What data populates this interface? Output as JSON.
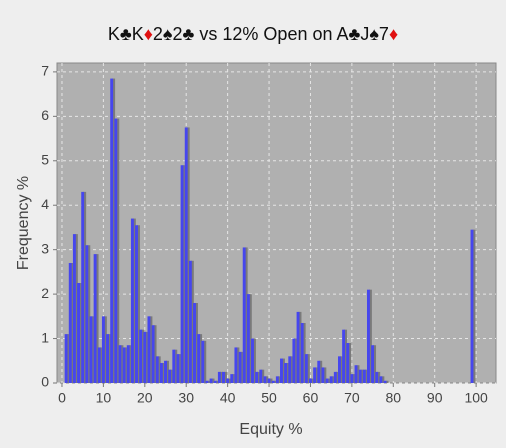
{
  "chart_data": {
    "type": "histogram",
    "title": "K♣K♦2♠2♣ vs 12% Open on A♣J♠7♦",
    "x_label": "Equity %",
    "y_label": "Frequency %",
    "x": [
      1,
      2,
      3,
      4,
      5,
      6,
      7,
      8,
      9,
      10,
      11,
      12,
      13,
      14,
      15,
      16,
      17,
      18,
      19,
      20,
      21,
      22,
      23,
      24,
      25,
      26,
      27,
      28,
      29,
      30,
      31,
      32,
      33,
      34,
      35,
      36,
      37,
      38,
      39,
      40,
      41,
      42,
      43,
      44,
      45,
      46,
      47,
      48,
      49,
      50,
      51,
      52,
      53,
      54,
      55,
      56,
      57,
      58,
      59,
      60,
      61,
      62,
      63,
      64,
      65,
      66,
      67,
      68,
      69,
      70,
      71,
      72,
      73,
      74,
      75,
      76,
      77,
      78,
      99
    ],
    "values": [
      1.1,
      2.7,
      3.35,
      2.25,
      4.3,
      3.1,
      1.5,
      2.9,
      0.8,
      1.5,
      1.1,
      6.85,
      5.95,
      0.85,
      0.8,
      0.85,
      3.7,
      3.55,
      1.2,
      1.15,
      1.5,
      1.3,
      0.6,
      0.45,
      0.5,
      0.3,
      0.75,
      0.65,
      4.9,
      5.75,
      2.75,
      1.8,
      1.1,
      0.95,
      0.05,
      0.1,
      0.05,
      0.25,
      0.25,
      0.1,
      0.2,
      0.8,
      0.7,
      3.05,
      2.0,
      1.0,
      0.25,
      0.3,
      0.15,
      0.1,
      0.05,
      0.15,
      0.55,
      0.45,
      0.6,
      1.0,
      1.6,
      1.35,
      0.65,
      0.1,
      0.35,
      0.5,
      0.35,
      0.1,
      0.15,
      0.25,
      0.6,
      1.2,
      0.9,
      0.2,
      0.4,
      0.3,
      0.3,
      2.1,
      0.85,
      0.25,
      0.15,
      0.05,
      3.45
    ],
    "color": "#4646ee",
    "shadow_color": "#7a7a7a",
    "red_suit": "♦",
    "red_color": "#e01010",
    "xlim": [
      -1.2,
      104.8
    ],
    "ylim": [
      0,
      7.2
    ],
    "xticks": [
      0,
      10,
      20,
      30,
      40,
      50,
      60,
      70,
      80,
      90,
      100
    ],
    "yticks": [
      0,
      1,
      2,
      3,
      4,
      5,
      6,
      7
    ],
    "grid": true
  }
}
